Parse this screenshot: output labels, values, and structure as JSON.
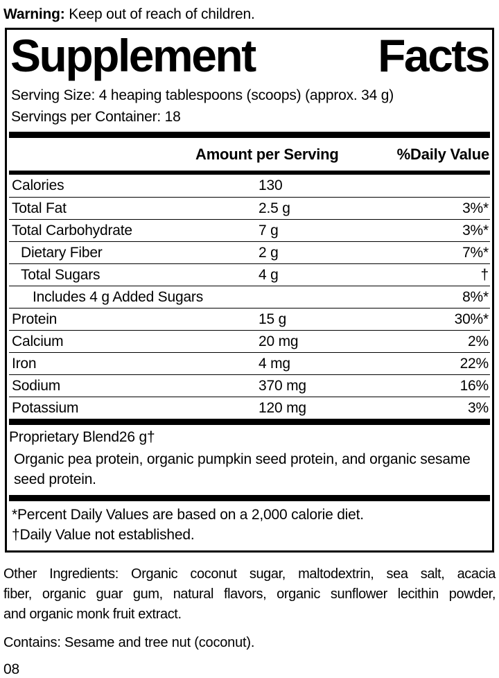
{
  "warning": {
    "label": "Warning:",
    "text": " Keep out of reach of children."
  },
  "panel": {
    "title_left": "Supplement",
    "title_right": "Facts",
    "serving_size": "Serving Size: 4 heaping tablespoons (scoops) (approx. 34 g)",
    "servings_per_container": "Servings per Container: 18",
    "columns": {
      "amount": "Amount per Serving",
      "daily_value": "%Daily Value"
    },
    "rows": [
      {
        "name": "Calories",
        "amount": "130",
        "dv": "",
        "indent": 0
      },
      {
        "name": "Total Fat",
        "amount": "2.5 g",
        "dv": "3%*",
        "indent": 0
      },
      {
        "name": "Total Carbohydrate",
        "amount": "7 g",
        "dv": "3%*",
        "indent": 0
      },
      {
        "name": "Dietary Fiber",
        "amount": "2 g",
        "dv": "7%*",
        "indent": 1
      },
      {
        "name": "Total Sugars",
        "amount": "4 g",
        "dv": "†",
        "indent": 1
      },
      {
        "name": "Includes 4 g Added Sugars",
        "amount": "",
        "dv": "8%*",
        "indent": 2
      },
      {
        "name": "Protein",
        "amount": "15 g",
        "dv": "30%*",
        "indent": 0
      },
      {
        "name": "Calcium",
        "amount": "20 mg",
        "dv": "2%",
        "indent": 0
      },
      {
        "name": "Iron",
        "amount": "4 mg",
        "dv": "22%",
        "indent": 0
      },
      {
        "name": "Sodium",
        "amount": "370 mg",
        "dv": "16%",
        "indent": 0
      },
      {
        "name": "Potassium",
        "amount": "120 mg",
        "dv": "3%",
        "indent": 0
      }
    ],
    "blend": {
      "name": "Proprietary Blend",
      "amount": "26 g",
      "dv": "†",
      "description_lines": [
        "Organic pea protein, organic pumpkin seed protein, and organic sesame",
        "seed protein."
      ]
    },
    "footnotes": [
      "*Percent Daily Values are based on a 2,000 calorie diet.",
      "†Daily Value not established."
    ]
  },
  "other_ingredients": {
    "lines": [
      "Other Ingredients: Organic coconut sugar, maltodextrin, sea salt, acacia",
      "fiber, organic guar gum, natural flavors, organic sunflower lecithin powder,",
      "and organic monk fruit extract."
    ]
  },
  "contains": "Contains: Sesame and tree nut (coconut).",
  "code": "08",
  "colors": {
    "ink": "#000000",
    "background": "#ffffff"
  }
}
